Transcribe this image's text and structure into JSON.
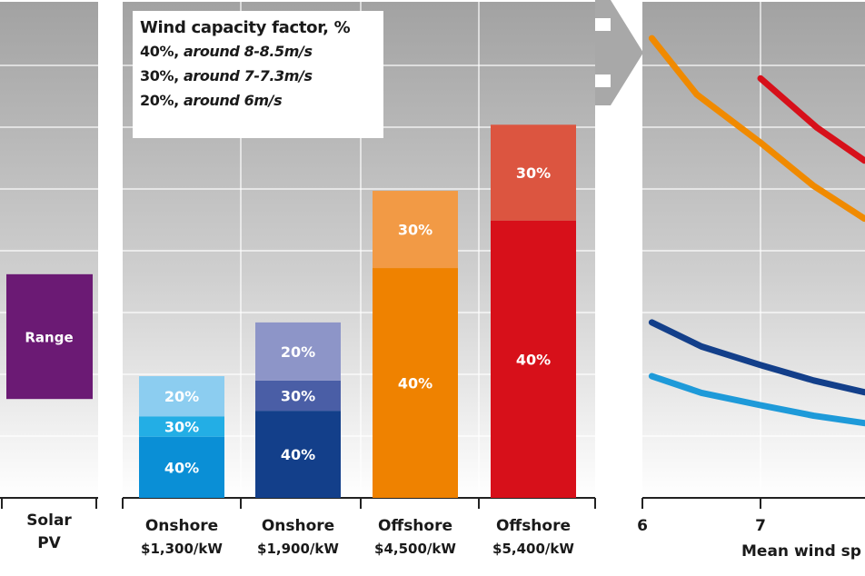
{
  "chart_data": {
    "type": "bar",
    "note_units": "grid divisions (no numeric axis printed)",
    "ylim": [
      0,
      8
    ],
    "grid": true,
    "legend": {
      "title": "Wind capacity factor, %",
      "entries": [
        {
          "pct": "40%,",
          "desc": "around 8-8.5m/s"
        },
        {
          "pct": "30%,",
          "desc": "around 7-7.3m/s"
        },
        {
          "pct": "20%,",
          "desc": "around 6m/s"
        }
      ]
    },
    "solar": {
      "label_line1": "Solar",
      "label_line2": "PV",
      "range_label": "Range",
      "range": [
        1.6,
        3.62
      ],
      "color": "#6b1a74"
    },
    "bars": [
      {
        "line1": "Onshore",
        "line2": "$1,300/kW",
        "segments": [
          {
            "label": "40%",
            "from": 0,
            "to": 0.99,
            "color": "#0a8fd6"
          },
          {
            "label": "30%",
            "from": 0.99,
            "to": 1.32,
            "color": "#23aee5"
          },
          {
            "label": "20%",
            "from": 1.32,
            "to": 1.97,
            "color": "#8ccdf0"
          }
        ]
      },
      {
        "line1": "Onshore",
        "line2": "$1,900/kW",
        "segments": [
          {
            "label": "40%",
            "from": 0,
            "to": 1.41,
            "color": "#133f8a"
          },
          {
            "label": "30%",
            "from": 1.41,
            "to": 1.9,
            "color": "#4a5ea6"
          },
          {
            "label": "20%",
            "from": 1.9,
            "to": 2.84,
            "color": "#8d95c8"
          }
        ]
      },
      {
        "line1": "Offshore",
        "line2": "$4,500/kW",
        "segments": [
          {
            "label": "40%",
            "from": 0,
            "to": 3.72,
            "color": "#ef8200"
          },
          {
            "label": "30%",
            "from": 3.72,
            "to": 4.97,
            "color": "#f29a45"
          }
        ]
      },
      {
        "line1": "Offshore",
        "line2": "$5,400/kW",
        "segments": [
          {
            "label": "40%",
            "from": 0,
            "to": 4.49,
            "color": "#d7101a"
          },
          {
            "label": "30%",
            "from": 4.49,
            "to": 6.04,
            "color": "#dc5540"
          }
        ]
      }
    ],
    "line_panel": {
      "type": "line",
      "xlabel": "Mean wind sp",
      "xticks": [
        "6",
        "7"
      ],
      "xlim": [
        6,
        7.88
      ],
      "series": [
        {
          "color": "#f08a00",
          "points": [
            [
              6.08,
              7.44
            ],
            [
              6.46,
              6.53
            ],
            [
              7.0,
              5.75
            ],
            [
              7.45,
              5.05
            ],
            [
              7.88,
              4.52
            ]
          ]
        },
        {
          "color": "#d7101a",
          "points": [
            [
              7.0,
              6.79
            ],
            [
              7.48,
              5.99
            ],
            [
              7.88,
              5.46
            ]
          ]
        },
        {
          "color": "#133f8a",
          "points": [
            [
              6.08,
              2.84
            ],
            [
              6.5,
              2.45
            ],
            [
              7.0,
              2.15
            ],
            [
              7.45,
              1.9
            ],
            [
              7.88,
              1.71
            ]
          ]
        },
        {
          "color": "#1e9ad9",
          "points": [
            [
              6.08,
              1.97
            ],
            [
              6.5,
              1.7
            ],
            [
              7.0,
              1.5
            ],
            [
              7.45,
              1.33
            ],
            [
              7.88,
              1.21
            ]
          ]
        }
      ]
    }
  }
}
